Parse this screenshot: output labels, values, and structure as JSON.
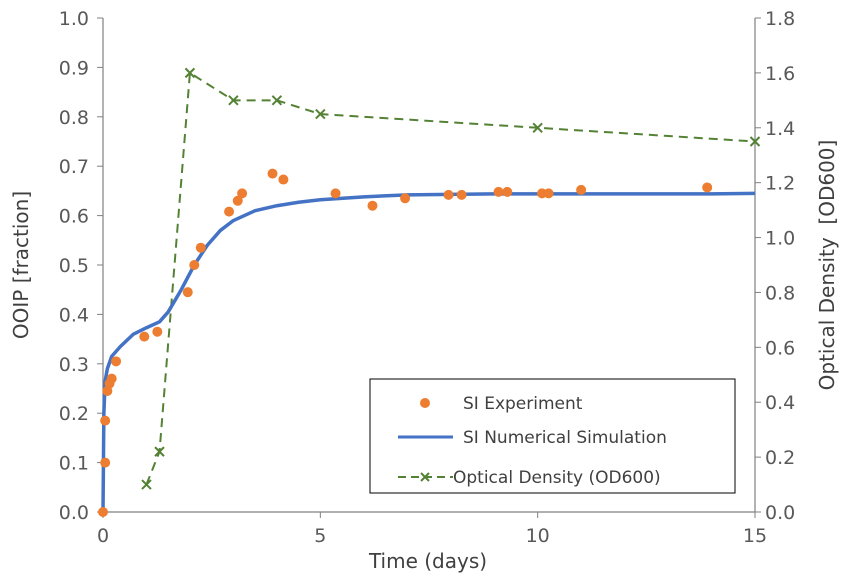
{
  "chart_data": {
    "type": "line",
    "xlabel": "Time (days)",
    "ylabel_left": "OOIP [fraction]",
    "ylabel_right": "Optical Density  [OD600]",
    "xlim": [
      0,
      15
    ],
    "ylim_left": [
      0,
      1.0
    ],
    "ylim_right": [
      0,
      1.8
    ],
    "x_ticks": [
      "0",
      "5",
      "10",
      "15"
    ],
    "y_left_ticks": [
      "0.0",
      "0.1",
      "0.2",
      "0.3",
      "0.4",
      "0.5",
      "0.6",
      "0.7",
      "0.8",
      "0.9",
      "1.0"
    ],
    "y_right_ticks": [
      "0.0",
      "0.2",
      "0.4",
      "0.6",
      "0.8",
      "1.0",
      "1.2",
      "1.4",
      "1.6",
      "1.8"
    ],
    "grid": false,
    "legend_position": "bottom-right",
    "colors": {
      "experiment": "#ED7D31",
      "simulation": "#4472C4",
      "optical_density": "#548235"
    },
    "series": [
      {
        "name": "SI Experiment",
        "axis": "left",
        "style": "markers",
        "x": [
          0.0,
          0.05,
          0.05,
          0.1,
          0.15,
          0.2,
          0.3,
          0.95,
          1.25,
          1.95,
          2.1,
          2.25,
          2.9,
          3.1,
          3.2,
          3.9,
          4.15,
          5.35,
          6.2,
          6.95,
          7.95,
          8.25,
          9.1,
          9.3,
          10.1,
          10.25,
          11.0,
          13.9
        ],
        "y": [
          0.0,
          0.1,
          0.185,
          0.245,
          0.26,
          0.27,
          0.305,
          0.355,
          0.365,
          0.445,
          0.5,
          0.535,
          0.608,
          0.63,
          0.645,
          0.685,
          0.673,
          0.645,
          0.62,
          0.635,
          0.642,
          0.642,
          0.648,
          0.648,
          0.645,
          0.645,
          0.652,
          0.657
        ]
      },
      {
        "name": "SI Numerical Simulation",
        "axis": "left",
        "style": "solid-line",
        "x": [
          0.0,
          0.02,
          0.05,
          0.1,
          0.2,
          0.4,
          0.7,
          1.0,
          1.3,
          1.5,
          1.8,
          2.1,
          2.4,
          2.7,
          3.0,
          3.5,
          4.0,
          4.5,
          5.0,
          6.0,
          7.0,
          8.0,
          9.0,
          10.0,
          11.0,
          12.0,
          13.0,
          14.0,
          15.0
        ],
        "y": [
          0.0,
          0.2,
          0.265,
          0.29,
          0.315,
          0.335,
          0.36,
          0.373,
          0.385,
          0.405,
          0.45,
          0.5,
          0.54,
          0.57,
          0.59,
          0.61,
          0.62,
          0.627,
          0.632,
          0.638,
          0.642,
          0.643,
          0.644,
          0.644,
          0.644,
          0.644,
          0.644,
          0.644,
          0.645
        ]
      },
      {
        "name": "Optical Density (OD600)",
        "axis": "right",
        "style": "dashed-line-x-markers",
        "x": [
          1.0,
          1.3,
          2.0,
          3.0,
          4.0,
          5.0,
          10.0,
          15.0
        ],
        "y": [
          0.1,
          0.22,
          1.6,
          1.5,
          1.5,
          1.45,
          1.4,
          1.35
        ]
      }
    ]
  }
}
